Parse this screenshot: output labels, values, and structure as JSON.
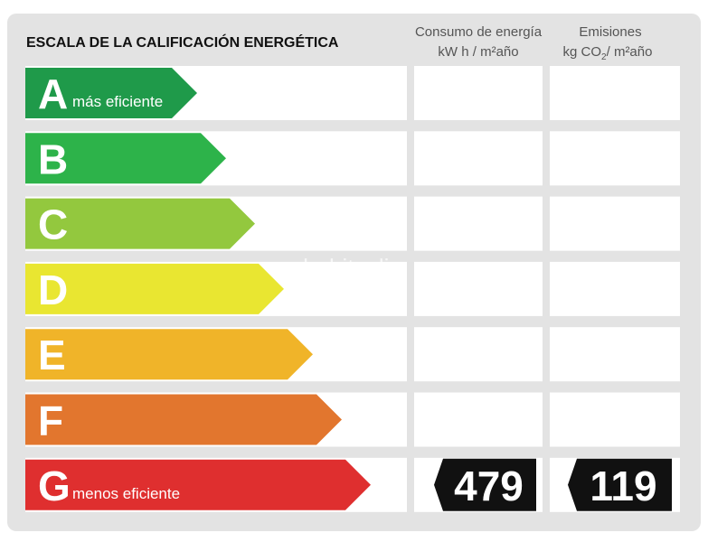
{
  "title": "ESCALA DE LA CALIFICACIÓN ENERGÉTICA",
  "consumption_header": {
    "title": "Consumo de energía",
    "unit": "kW h / m²año"
  },
  "emissions_header": {
    "title": "Emisiones",
    "unit_prefix": "kg CO",
    "unit_subscript": "2",
    "unit_suffix": "/ m²año"
  },
  "watermark": "habitaclia",
  "rows": [
    {
      "letter": "A",
      "label": "más eficiente",
      "color": "#1f9a4a"
    },
    {
      "letter": "B",
      "color": "#2db34a"
    },
    {
      "letter": "C",
      "color": "#93c83e"
    },
    {
      "letter": "D",
      "color": "#e9e631"
    },
    {
      "letter": "E",
      "color": "#f0b429"
    },
    {
      "letter": "F",
      "color": "#e2762e"
    },
    {
      "letter": "G",
      "label": "menos eficiente",
      "color": "#df2f2f"
    }
  ],
  "rating": {
    "letter": "G",
    "consumption": 479,
    "emissions": 119
  }
}
